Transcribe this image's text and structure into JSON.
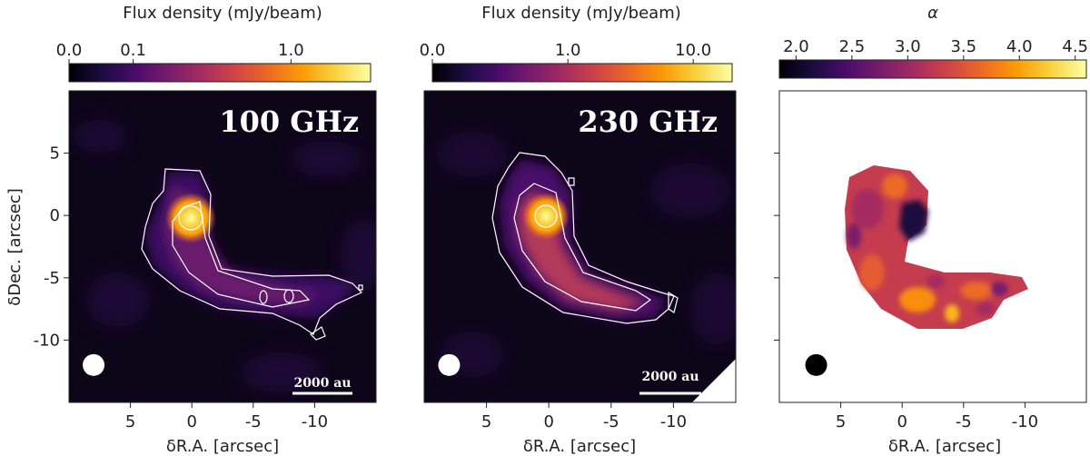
{
  "chart_data": [
    {
      "type": "heatmap",
      "panel": "100 GHz",
      "band_label": "100 GHz",
      "colorbar": {
        "title": "Flux density (mJy/beam)",
        "scale": "log-stretch",
        "ticks": [
          {
            "value": 0.0,
            "label": "0.0"
          },
          {
            "value": 0.1,
            "label": "0.1"
          },
          {
            "value": 1.0,
            "label": "1.0"
          }
        ],
        "range": [
          0.0,
          2.5
        ],
        "colormap": "inferno"
      },
      "xlabel": "δR.A. [arcsec]",
      "ylabel": "δDec. [arcsec]",
      "xlim": [
        10,
        -15
      ],
      "ylim": [
        -15,
        10
      ],
      "xticks": [
        5,
        0,
        -5,
        -10
      ],
      "yticks": [
        5,
        0,
        -5,
        -10
      ],
      "scalebar_label": "2000 au",
      "source": {
        "x": 0,
        "y": 0
      },
      "beam": {
        "x": 8,
        "y": -12
      }
    },
    {
      "type": "heatmap",
      "panel": "230 GHz",
      "band_label": "230 GHz",
      "colorbar": {
        "title": "Flux density (mJy/beam)",
        "scale": "log-stretch",
        "ticks": [
          {
            "value": 0.0,
            "label": "0.0"
          },
          {
            "value": 1.0,
            "label": "1.0"
          },
          {
            "value": 10.0,
            "label": "10.0"
          }
        ],
        "range": [
          0.0,
          20.0
        ],
        "colormap": "inferno"
      },
      "xlabel": "δR.A. [arcsec]",
      "ylabel": "",
      "xlim": [
        10,
        -15
      ],
      "ylim": [
        -15,
        10
      ],
      "xticks": [
        5,
        0,
        -5,
        -10
      ],
      "yticks": [
        5,
        0,
        -5,
        -10
      ],
      "scalebar_label": "2000 au",
      "source": {
        "x": 0,
        "y": 0
      },
      "beam": {
        "x": 8,
        "y": -12
      }
    },
    {
      "type": "heatmap",
      "panel": "spectral index",
      "colorbar": {
        "title": "α",
        "scale": "linear",
        "ticks": [
          {
            "value": 2.0,
            "label": "2.0"
          },
          {
            "value": 2.5,
            "label": "2.5"
          },
          {
            "value": 3.0,
            "label": "3.0"
          },
          {
            "value": 3.5,
            "label": "3.5"
          },
          {
            "value": 4.0,
            "label": "4.0"
          },
          {
            "value": 4.5,
            "label": "4.5"
          }
        ],
        "range": [
          1.85,
          4.6
        ],
        "colormap": "inferno"
      },
      "xlabel": "δR.A. [arcsec]",
      "ylabel": "",
      "xlim": [
        10,
        -15
      ],
      "ylim": [
        -15,
        10
      ],
      "xticks": [
        5,
        0,
        -5,
        -10
      ],
      "yticks": [
        5,
        0,
        -5,
        -10
      ],
      "beam": {
        "x": 7,
        "y": -12
      }
    }
  ],
  "colors": {
    "inferno": [
      "#000004",
      "#1b0c41",
      "#4a0c6b",
      "#781c6d",
      "#a52c60",
      "#cf4446",
      "#ed6925",
      "#fb9b06",
      "#f7d13d",
      "#fcffa4"
    ],
    "background_map": "#0d0518",
    "alpha_low": "#3b0f70",
    "alpha_mid": "#c43c4e",
    "alpha_high": "#f98e09",
    "contour": "#ffffff",
    "beam_dark": "#000000"
  }
}
